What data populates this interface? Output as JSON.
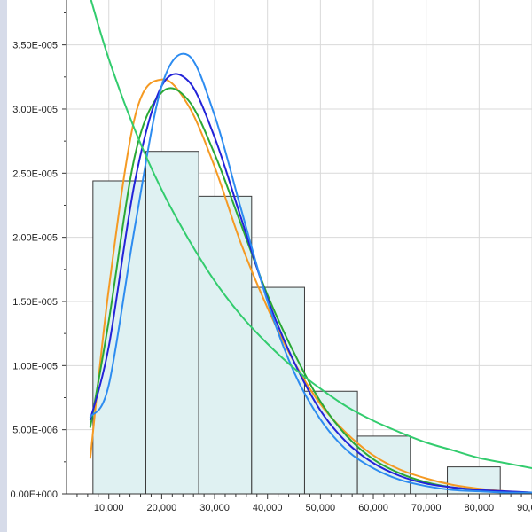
{
  "chart_data": {
    "type": "bar",
    "title": "",
    "xlabel": "",
    "ylabel": "",
    "xlim": [
      2000,
      90000
    ],
    "ylim": [
      0,
      3.85e-05
    ],
    "grid": true,
    "x_ticks": [
      10000,
      20000,
      30000,
      40000,
      50000,
      60000,
      70000,
      80000,
      90000
    ],
    "x_tick_labels": [
      "10,000",
      "20,000",
      "30,000",
      "40,000",
      "50,000",
      "60,000",
      "70,000",
      "80,000",
      "90,000"
    ],
    "y_ticks": [
      0,
      5e-06,
      1e-05,
      1.5e-05,
      2e-05,
      2.5e-05,
      3e-05,
      3.5e-05
    ],
    "y_tick_labels": [
      "0.00E+000",
      "5.00E-006",
      "1.00E-005",
      "1.50E-005",
      "2.00E-005",
      "2.50E-005",
      "3.00E-005",
      "3.50E-005"
    ],
    "histogram": {
      "bin_edges": [
        7000,
        17000,
        27000,
        37000,
        47000,
        57000,
        67000,
        74000,
        84000
      ],
      "values": [
        2.44e-05,
        2.67e-05,
        2.32e-05,
        1.61e-05,
        8e-06,
        4.5e-06,
        1e-06,
        2.1e-06
      ],
      "fill_color": "#dff1f2",
      "edge_color": "#3a3a3a"
    },
    "series": [
      {
        "color": "#f59a23",
        "x": [
          6500,
          10000,
          15000,
          20000,
          25000,
          30000,
          35000,
          40000,
          45000,
          50000,
          55000,
          60000,
          65000,
          70000,
          75000,
          80000,
          85000,
          90000
        ],
        "values": [
          2.8e-06,
          1.6e-05,
          2.95e-05,
          3.23e-05,
          3.03e-05,
          2.55e-05,
          1.95e-05,
          1.45e-05,
          1.03e-05,
          7e-06,
          4.7e-06,
          3e-06,
          1.9e-06,
          1.2e-06,
          7e-07,
          4e-07,
          2e-07,
          1e-07
        ]
      },
      {
        "color": "#2aa836",
        "x": [
          6500,
          10000,
          15000,
          20000,
          25000,
          30000,
          35000,
          40000,
          45000,
          50000,
          55000,
          60000,
          65000,
          70000,
          75000,
          80000,
          85000,
          90000
        ],
        "values": [
          5.2e-06,
          1.35e-05,
          2.65e-05,
          3.13e-05,
          3.07e-05,
          2.65e-05,
          2.1e-05,
          1.55e-05,
          1.1e-05,
          7.2e-06,
          4.5e-06,
          2.7e-06,
          1.6e-06,
          9e-07,
          5e-07,
          3e-07,
          1e-07,
          1e-07
        ]
      },
      {
        "color": "#2323d8",
        "x": [
          6500,
          10000,
          15000,
          20000,
          25000,
          30000,
          35000,
          40000,
          45000,
          50000,
          55000,
          60000,
          65000,
          70000,
          75000,
          80000,
          85000,
          90000
        ],
        "values": [
          5.8e-06,
          1.15e-05,
          2.45e-05,
          3.18e-05,
          3.22e-05,
          2.78e-05,
          2.15e-05,
          1.52e-05,
          1.03e-05,
          6.5e-06,
          4e-06,
          2.4e-06,
          1.4e-06,
          8e-07,
          5e-07,
          3e-07,
          2e-07,
          1e-07
        ]
      },
      {
        "color": "#2d8cf0",
        "x": [
          6500,
          10000,
          15000,
          20000,
          25000,
          30000,
          35000,
          40000,
          45000,
          50000,
          55000,
          60000,
          65000,
          70000,
          75000,
          80000,
          85000,
          90000
        ],
        "values": [
          6e-06,
          8.5e-06,
          2.1e-05,
          3.18e-05,
          3.42e-05,
          2.95e-05,
          2.22e-05,
          1.5e-05,
          9.5e-06,
          5.8e-06,
          3.4e-06,
          2e-06,
          1.1e-06,
          6e-07,
          3e-07,
          2e-07,
          1e-07,
          1e-07
        ]
      },
      {
        "color": "#33cc6e",
        "x": [
          6500,
          10000,
          15000,
          20000,
          25000,
          30000,
          35000,
          40000,
          45000,
          50000,
          55000,
          60000,
          65000,
          70000,
          75000,
          80000,
          85000,
          90000
        ],
        "values": [
          3.87e-05,
          3.39e-05,
          2.83e-05,
          2.37e-05,
          1.99e-05,
          1.66e-05,
          1.39e-05,
          1.17e-05,
          9.8e-06,
          8.2e-06,
          6.8e-06,
          5.7e-06,
          4.8e-06,
          4e-06,
          3.4e-06,
          2.8e-06,
          2.4e-06,
          2e-06
        ]
      }
    ]
  }
}
